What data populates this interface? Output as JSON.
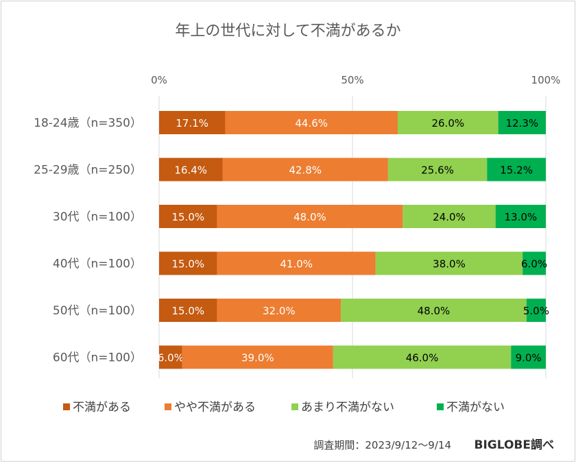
{
  "chart_data": {
    "type": "bar",
    "orientation": "horizontal",
    "stacked": "percent",
    "title": "年上の世代に対して不満があるか",
    "categories": [
      "18-24歳（n=350）",
      "25-29歳（n=250）",
      "30代（n=100）",
      "40代（n=100）",
      "50代（n=100）",
      "60代（n=100）"
    ],
    "series": [
      {
        "name": "不満がある",
        "color": "#c55a11",
        "label_color": "#ffffff",
        "values": [
          17.1,
          16.4,
          15.0,
          15.0,
          15.0,
          6.0
        ]
      },
      {
        "name": "やや不満がある",
        "color": "#ed7d31",
        "label_color": "#ffffff",
        "values": [
          44.6,
          42.8,
          48.0,
          41.0,
          32.0,
          39.0
        ]
      },
      {
        "name": "あまり不満がない",
        "color": "#92d050",
        "label_color": "#000000",
        "values": [
          26.0,
          25.6,
          24.0,
          38.0,
          48.0,
          46.0
        ]
      },
      {
        "name": "不満がない",
        "color": "#00b050",
        "label_color": "#000000",
        "values": [
          12.3,
          15.2,
          13.0,
          6.0,
          5.0,
          9.0
        ]
      }
    ],
    "xticks": [
      "0%",
      "50%",
      "100%"
    ],
    "xlim": [
      0,
      100
    ],
    "grid": true,
    "legend_position": "bottom"
  },
  "footer": {
    "note": "調査期間：2023/9/12～9/14",
    "brand": "BIGLOBE調べ"
  }
}
